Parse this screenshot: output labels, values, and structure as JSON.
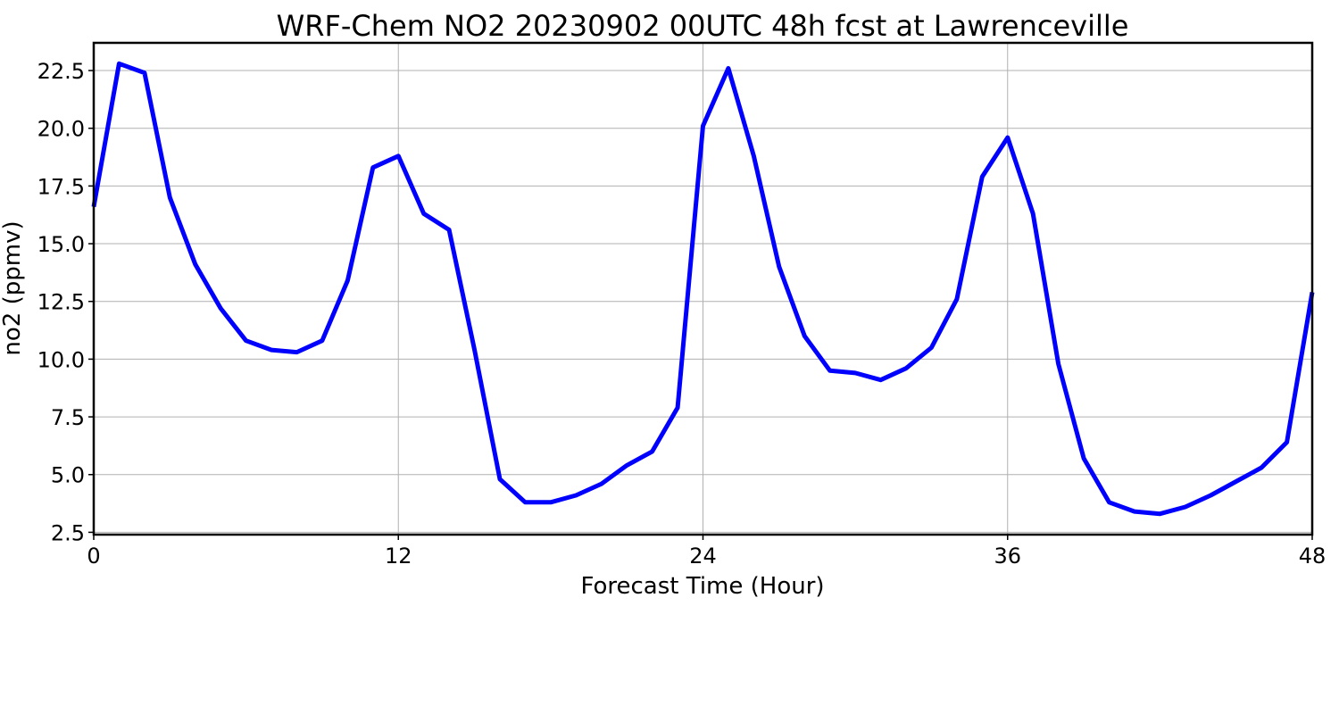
{
  "chart_data": {
    "type": "line",
    "title": "WRF-Chem NO2  20230902 00UTC 48h fcst at Lawrenceville",
    "xlabel": "Forecast Time (Hour)",
    "ylabel": "no2  (ppmv)",
    "xlim": [
      0,
      48
    ],
    "ylim": [
      2.4,
      23.7
    ],
    "xticks": [
      0,
      12,
      24,
      36,
      48
    ],
    "xtick_labels": [
      "0",
      "12",
      "24",
      "36",
      "48"
    ],
    "yticks": [
      2.5,
      5.0,
      7.5,
      10.0,
      12.5,
      15.0,
      17.5,
      20.0,
      22.5
    ],
    "ytick_labels": [
      "2.5",
      "5.0",
      "7.5",
      "10.0",
      "12.5",
      "15.0",
      "17.5",
      "20.0",
      "22.5"
    ],
    "grid": true,
    "series": [
      {
        "color": "#0000ff",
        "x": [
          0,
          1,
          2,
          3,
          4,
          5,
          6,
          7,
          8,
          9,
          10,
          11,
          12,
          13,
          14,
          15,
          16,
          17,
          18,
          19,
          20,
          21,
          22,
          23,
          24,
          25,
          26,
          27,
          28,
          29,
          30,
          31,
          32,
          33,
          34,
          35,
          36,
          37,
          38,
          39,
          40,
          41,
          42,
          43,
          44,
          45,
          46,
          47,
          48
        ],
        "values": [
          16.6,
          22.8,
          22.4,
          17.0,
          14.1,
          12.2,
          10.8,
          10.4,
          10.3,
          10.8,
          13.4,
          18.3,
          18.8,
          16.3,
          15.6,
          10.4,
          4.8,
          3.8,
          3.8,
          4.1,
          4.6,
          5.4,
          6.0,
          7.9,
          20.1,
          22.6,
          18.8,
          14.0,
          11.0,
          9.5,
          9.4,
          9.1,
          9.6,
          10.5,
          12.6,
          17.9,
          19.6,
          16.3,
          9.8,
          5.7,
          3.8,
          3.4,
          3.3,
          3.6,
          4.1,
          4.7,
          5.3,
          6.4,
          12.9
        ]
      }
    ]
  }
}
